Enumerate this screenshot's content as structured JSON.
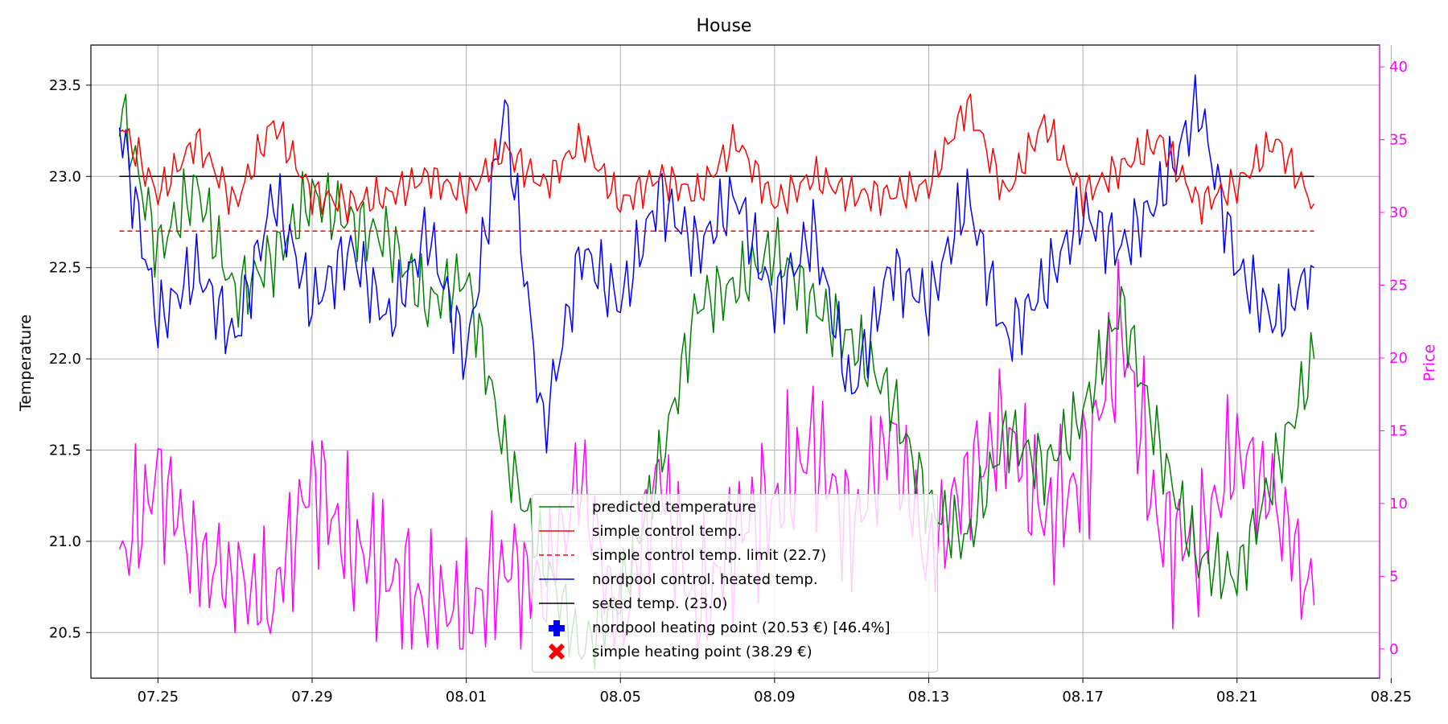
{
  "chart_data": {
    "type": "line",
    "title": "House",
    "ylabel": "Temperature",
    "ylabel2": "Price",
    "xlabel": "",
    "ylim": [
      20.25,
      23.72
    ],
    "ylim2": [
      -2,
      41.5
    ],
    "xlim": [
      -0.74,
      32.7
    ],
    "x_tick_values": [
      1,
      5,
      9,
      13,
      17,
      21,
      25,
      29,
      33
    ],
    "x_tick_labels": [
      "07.25",
      "07.29",
      "08.01",
      "08.05",
      "08.09",
      "08.13",
      "08.17",
      "08.21",
      "08.25"
    ],
    "y_ticks": [
      20.5,
      21.0,
      21.5,
      22.0,
      22.5,
      23.0,
      23.5
    ],
    "y_tick_labels": [
      "20.5",
      "21.0",
      "21.5",
      "22.0",
      "22.5",
      "23.0",
      "23.5"
    ],
    "y2_ticks": [
      0,
      5,
      10,
      15,
      20,
      25,
      30,
      35,
      40
    ],
    "grid": true,
    "legend_position": "lower-center",
    "x_days": [
      0,
      1,
      2,
      3,
      4,
      5,
      6,
      7,
      8,
      9,
      10,
      11,
      12,
      13,
      14,
      15,
      16,
      17,
      18,
      19,
      20,
      21,
      22,
      23,
      24,
      25,
      26,
      27,
      28,
      29,
      30,
      31
    ],
    "series": [
      {
        "name": "predicted temperature",
        "axis": "left",
        "color": "#008000",
        "style": "solid",
        "values": [
          23.4,
          22.6,
          22.95,
          22.35,
          22.55,
          22.9,
          22.75,
          22.65,
          22.3,
          22.45,
          21.5,
          20.9,
          20.4,
          20.7,
          21.4,
          22.3,
          22.4,
          22.6,
          22.3,
          22.1,
          21.8,
          21.2,
          21.0,
          21.6,
          21.4,
          21.7,
          22.3,
          21.5,
          20.9,
          20.8,
          21.4,
          22.0
        ]
      },
      {
        "name": "simple control temp.",
        "axis": "left",
        "color": "#ff0000",
        "style": "solid",
        "values": [
          23.3,
          22.9,
          23.2,
          22.85,
          23.3,
          22.9,
          22.85,
          22.9,
          23.0,
          22.9,
          23.15,
          22.95,
          23.2,
          22.85,
          23.0,
          22.9,
          23.2,
          22.85,
          23.0,
          22.9,
          22.9,
          22.95,
          23.4,
          22.9,
          23.3,
          22.9,
          23.05,
          23.2,
          22.85,
          22.95,
          23.2,
          22.85
        ]
      },
      {
        "name": "simple control temp. limit (22.7)",
        "axis": "left",
        "color": "#ff0000",
        "style": "dashed",
        "values": [
          22.7,
          22.7,
          22.7,
          22.7,
          22.7,
          22.7,
          22.7,
          22.7,
          22.7,
          22.7,
          22.7,
          22.7,
          22.7,
          22.7,
          22.7,
          22.7,
          22.7,
          22.7,
          22.7,
          22.7,
          22.7,
          22.7,
          22.7,
          22.7,
          22.7,
          22.7,
          22.7,
          22.7,
          22.7,
          22.7,
          22.7,
          22.7
        ]
      },
      {
        "name": "nordpool control. heated temp.",
        "axis": "left",
        "color": "#0000ff",
        "style": "solid",
        "values": [
          23.3,
          22.2,
          22.5,
          22.1,
          22.9,
          22.3,
          22.6,
          22.2,
          22.7,
          22.0,
          23.4,
          21.6,
          22.6,
          22.3,
          22.9,
          22.6,
          22.9,
          22.3,
          22.7,
          21.8,
          22.5,
          22.3,
          22.9,
          22.1,
          22.4,
          22.8,
          22.6,
          22.9,
          23.4,
          22.5,
          22.2,
          22.5
        ]
      },
      {
        "name": "seted temp. (23.0)",
        "axis": "left",
        "color": "#000000",
        "style": "solid",
        "values": [
          23.0,
          23.0,
          23.0,
          23.0,
          23.0,
          23.0,
          23.0,
          23.0,
          23.0,
          23.0,
          23.0,
          23.0,
          23.0,
          23.0,
          23.0,
          23.0,
          23.0,
          23.0,
          23.0,
          23.0,
          23.0,
          23.0,
          23.0,
          23.0,
          23.0,
          23.0,
          23.0,
          23.0,
          23.0,
          23.0,
          23.0,
          23.0
        ]
      },
      {
        "name": "Price",
        "axis": "right",
        "color": "#ff00ff",
        "style": "solid",
        "show_in_legend": false,
        "values": [
          6,
          12,
          6,
          5,
          3,
          12,
          7,
          5,
          3,
          2,
          6,
          4,
          12,
          1,
          12,
          2,
          8,
          10,
          14,
          8,
          15,
          6,
          12,
          15,
          9,
          12,
          22,
          8,
          7,
          14,
          10,
          3
        ]
      }
    ],
    "markers": [
      {
        "name": "nordpool heating point  (20.53 €) [46.4%]",
        "color": "#0000ff",
        "symbol": "plus"
      },
      {
        "name": "simple heating point (38.29 €)",
        "color": "#ff0000",
        "symbol": "x"
      }
    ]
  },
  "legend": {
    "items": [
      "predicted temperature",
      "simple control temp.",
      "simple control temp. limit (22.7)",
      "nordpool control. heated temp.",
      "seted temp. (23.0)",
      "nordpool heating point  (20.53 €) [46.4%]",
      "simple heating point (38.29 €)"
    ]
  }
}
